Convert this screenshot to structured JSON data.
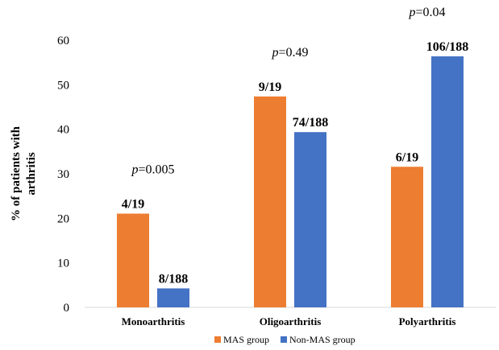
{
  "chart_data": {
    "type": "bar",
    "ylabel_lines": [
      "% of patients with",
      "arthritis"
    ],
    "xlabel": "",
    "ylim": [
      0,
      60
    ],
    "yticks": [
      0,
      10,
      20,
      30,
      40,
      50,
      60
    ],
    "grid": false,
    "legend_position": "bottom",
    "categories": [
      "Monoarthritis",
      "Oligoarthritis",
      "Polyarthritis"
    ],
    "series": [
      {
        "name": "MAS group",
        "color": "#ED7D31",
        "values": [
          21.05,
          47.37,
          31.58
        ],
        "labels": [
          "4/19",
          "9/19",
          "6/19"
        ]
      },
      {
        "name": "Non-MAS group",
        "color": "#4472C4",
        "values": [
          4.26,
          39.36,
          56.38
        ],
        "labels": [
          "8/188",
          "74/188",
          "106/188"
        ]
      }
    ],
    "p_values": [
      {
        "prefix": "p",
        "rest": "=0.005"
      },
      {
        "prefix": "p",
        "rest": "=0.49"
      },
      {
        "prefix": "p",
        "rest": "=0.04"
      }
    ]
  }
}
